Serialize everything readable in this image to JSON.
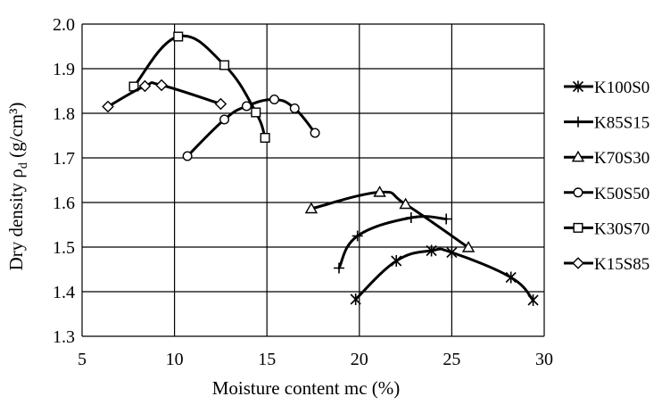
{
  "chart_data": {
    "type": "line",
    "title": "",
    "xlabel": "Moisture content mc (%)",
    "ylabel_main": "Dry density ρ",
    "ylabel_sub": "d",
    "ylabel_unit": " (g/cm³)",
    "xlim": [
      5,
      30
    ],
    "ylim": [
      1.3,
      2.0
    ],
    "x_ticks": [
      5,
      10,
      15,
      20,
      25,
      30
    ],
    "x_tick_labels": [
      "5",
      "10",
      "15",
      "20",
      "25",
      "30"
    ],
    "y_ticks": [
      1.3,
      1.4,
      1.5,
      1.6,
      1.7,
      1.8,
      1.9,
      2.0
    ],
    "y_tick_labels": [
      "1.3",
      "1.4",
      "1.5",
      "1.6",
      "1.7",
      "1.8",
      "1.9",
      "2.0"
    ],
    "grid": "horizontal",
    "legend_position": "right",
    "line_color": "#000000",
    "series": [
      {
        "name": "K100S0",
        "marker": "asterisk",
        "x": [
          19.8,
          22.0,
          23.9,
          25.0,
          28.2,
          29.4
        ],
        "y": [
          1.383,
          1.469,
          1.492,
          1.488,
          1.432,
          1.381
        ]
      },
      {
        "name": "K85S15",
        "marker": "plus",
        "x": [
          18.9,
          19.9,
          22.8,
          24.7
        ],
        "y": [
          1.453,
          1.525,
          1.566,
          1.563
        ]
      },
      {
        "name": "K70S30",
        "marker": "triangle",
        "x": [
          17.4,
          21.1,
          22.5,
          25.9
        ],
        "y": [
          1.586,
          1.623,
          1.596,
          1.499
        ]
      },
      {
        "name": "K50S50",
        "marker": "circle",
        "x": [
          10.7,
          12.7,
          13.9,
          15.4,
          16.5,
          17.6
        ],
        "y": [
          1.704,
          1.786,
          1.816,
          1.831,
          1.811,
          1.756
        ]
      },
      {
        "name": "K30S70",
        "marker": "square",
        "x": [
          7.8,
          10.2,
          12.7,
          14.4,
          14.9
        ],
        "y": [
          1.86,
          1.972,
          1.908,
          1.802,
          1.745
        ]
      },
      {
        "name": "K15S85",
        "marker": "diamond",
        "x": [
          6.4,
          8.4,
          9.3,
          12.5
        ],
        "y": [
          1.815,
          1.861,
          1.863,
          1.821
        ]
      }
    ]
  }
}
